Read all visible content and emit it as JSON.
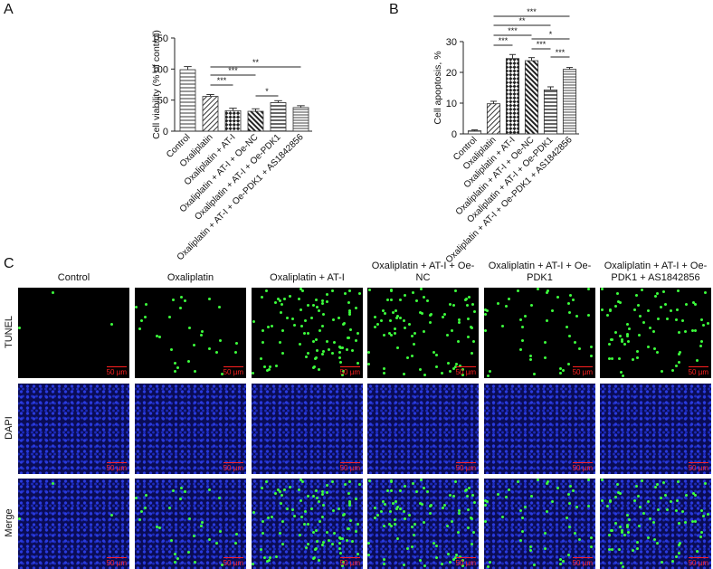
{
  "panel_labels": [
    "A",
    "B",
    "C"
  ],
  "chart_data": [
    {
      "type": "bar",
      "ylabel": "Cell viability (% of control)",
      "categories": [
        "Control",
        "Oxaliplatin",
        "Oxaliplatin + AT-I",
        "Oxaliplatin + AT-I + Oe-NC",
        "Oxaliplatin + AT-I + Oe-PDK1",
        "Oxaliplatin + AT-I + Oe-PDK1 + AS1842856"
      ],
      "values": [
        99,
        56,
        33,
        32,
        46,
        38
      ],
      "errors": [
        5,
        3,
        4,
        4,
        3,
        3
      ],
      "ylim": [
        0,
        150
      ],
      "yticks": [
        0,
        50,
        100,
        150
      ],
      "color": "#333333",
      "comparisons": [
        {
          "groups": [
            "Oxaliplatin",
            "Oxaliplatin + AT-I"
          ],
          "label": "***"
        },
        {
          "groups": [
            "Oxaliplatin",
            "Oxaliplatin + AT-I + Oe-NC"
          ],
          "label": "***"
        },
        {
          "groups": [
            "Oxaliplatin",
            "Oxaliplatin + AT-I + Oe-PDK1 + AS1842856"
          ],
          "label": "**"
        },
        {
          "groups": [
            "Oxaliplatin + AT-I + Oe-NC",
            "Oxaliplatin + AT-I + Oe-PDK1"
          ],
          "label": "*"
        }
      ]
    },
    {
      "type": "bar",
      "ylabel": "Cell apoptosis, %",
      "categories": [
        "Control",
        "Oxaliplatin",
        "Oxaliplatin + AT-I",
        "Oxaliplatin + AT-I + Oe-NC",
        "Oxaliplatin + AT-I + Oe-PDK1",
        "Oxaliplatin + AT-I + Oe-PDK1 + AS1842856"
      ],
      "values": [
        1,
        9.8,
        24.5,
        23.8,
        14.3,
        21
      ],
      "errors": [
        0.3,
        0.8,
        1.3,
        1,
        1,
        0.6
      ],
      "ylim": [
        0,
        30
      ],
      "yticks": [
        0,
        10,
        20,
        30
      ],
      "color": "#333333",
      "comparisons": [
        {
          "groups": [
            "Oxaliplatin",
            "Oxaliplatin + AT-I"
          ],
          "label": "***"
        },
        {
          "groups": [
            "Oxaliplatin",
            "Oxaliplatin + AT-I + Oe-NC"
          ],
          "label": "***"
        },
        {
          "groups": [
            "Oxaliplatin",
            "Oxaliplatin + AT-I + Oe-PDK1"
          ],
          "label": "**"
        },
        {
          "groups": [
            "Oxaliplatin",
            "Oxaliplatin + AT-I + Oe-PDK1 + AS1842856"
          ],
          "label": "***"
        },
        {
          "groups": [
            "Oxaliplatin + AT-I + Oe-NC",
            "Oxaliplatin + AT-I + Oe-PDK1"
          ],
          "label": "***"
        },
        {
          "groups": [
            "Oxaliplatin + AT-I + Oe-NC",
            "Oxaliplatin + AT-I + Oe-PDK1 + AS1842856"
          ],
          "label": "*"
        },
        {
          "groups": [
            "Oxaliplatin + AT-I + Oe-PDK1",
            "Oxaliplatin + AT-I + Oe-PDK1 + AS1842856"
          ],
          "label": "***"
        }
      ]
    }
  ],
  "panel_c": {
    "columns": [
      "Control",
      "Oxaliplatin",
      "Oxaliplatin + AT-I",
      "Oxaliplatin + AT-I + Oe-NC",
      "Oxaliplatin + AT-I + Oe-PDK1",
      "Oxaliplatin + AT-I + Oe-PDK1 + AS1842856"
    ],
    "rows": [
      "TUNEL",
      "DAPI",
      "Merge"
    ],
    "scale_bar": "50 µm"
  }
}
